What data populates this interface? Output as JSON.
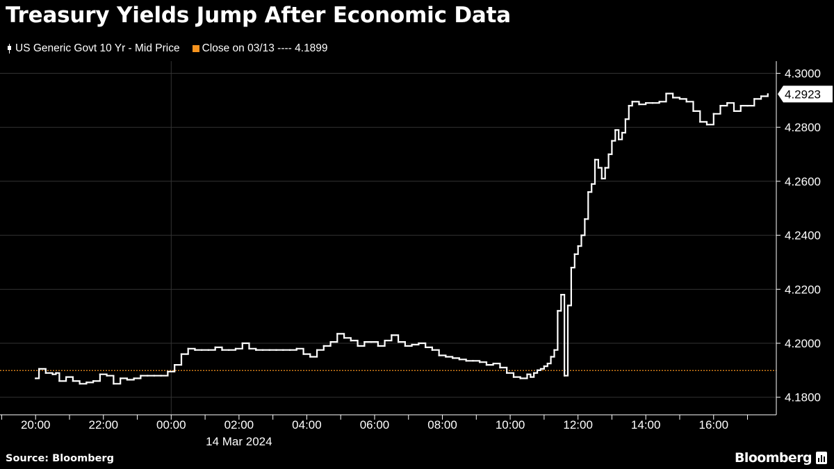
{
  "title": "Treasury Yields Jump After Economic Data",
  "legend": [
    {
      "label": "US Generic Govt 10 Yr - Mid Price",
      "color": "#ffffff",
      "kind": "candle"
    },
    {
      "label": "Close on 03/13 ---- 4.1899",
      "color": "#f7931e",
      "kind": "square"
    }
  ],
  "footer": {
    "source": "Source: Bloomberg",
    "logo_text": "Bloomberg"
  },
  "colors": {
    "background": "#000000",
    "series": "#ffffff",
    "reference_line": "#f7931e",
    "grid": "#333333"
  },
  "chart_data": {
    "type": "line",
    "x_unit": "hours from 20:00 on 13 Mar 2024",
    "xlim": [
      -1.05,
      21.85
    ],
    "ylim": [
      4.1735,
      4.3045
    ],
    "y_ticks": [
      4.18,
      4.2,
      4.22,
      4.24,
      4.26,
      4.28,
      4.3
    ],
    "y_tick_labels": [
      "4.1800",
      "4.2000",
      "4.2200",
      "4.2400",
      "4.2600",
      "4.2800",
      "4.3000"
    ],
    "x_ticks": [
      0,
      2,
      4,
      6,
      8,
      10,
      12,
      14,
      16,
      18,
      20
    ],
    "x_tick_labels": [
      "20:00",
      "22:00",
      "00:00",
      "02:00",
      "04:00",
      "06:00",
      "08:00",
      "10:00",
      "12:00",
      "14:00",
      "16:00"
    ],
    "x_sublabel": "14 Mar 2024",
    "x_sublabel_at": 6,
    "vertical_grid_at": [
      4
    ],
    "reference_line": {
      "value": 4.1899,
      "label": "Close on 03/13 ---- 4.1899"
    },
    "last_value_label": "4.2923",
    "last_value": 4.2923,
    "series": [
      {
        "name": "US Generic Govt 10 Yr - Mid Price",
        "x": [
          0,
          0.1,
          0.3,
          0.5,
          0.6,
          0.7,
          0.9,
          1.1,
          1.3,
          1.5,
          1.7,
          1.9,
          2.1,
          2.3,
          2.5,
          2.7,
          2.9,
          3.1,
          3.3,
          3.5,
          3.7,
          3.9,
          4.1,
          4.3,
          4.5,
          4.7,
          4.9,
          5.1,
          5.3,
          5.5,
          5.7,
          5.9,
          6.1,
          6.3,
          6.5,
          6.7,
          6.9,
          7.1,
          7.3,
          7.5,
          7.7,
          7.9,
          8.1,
          8.3,
          8.5,
          8.7,
          8.9,
          9.1,
          9.3,
          9.5,
          9.7,
          9.9,
          10.1,
          10.3,
          10.5,
          10.7,
          10.9,
          11.1,
          11.3,
          11.5,
          11.7,
          11.9,
          12.1,
          12.3,
          12.5,
          12.7,
          12.9,
          13.1,
          13.3,
          13.5,
          13.7,
          13.9,
          14.1,
          14.3,
          14.5,
          14.6,
          14.7,
          14.8,
          14.9,
          15.0,
          15.1,
          15.2,
          15.3,
          15.4,
          15.5,
          15.6,
          15.7,
          15.8,
          15.9,
          16.0,
          16.1,
          16.2,
          16.3,
          16.4,
          16.5,
          16.6,
          16.7,
          16.8,
          16.9,
          17.0,
          17.1,
          17.2,
          17.3,
          17.4,
          17.5,
          17.6,
          17.8,
          18.0,
          18.2,
          18.4,
          18.6,
          18.8,
          19.0,
          19.2,
          19.4,
          19.6,
          19.8,
          20.0,
          20.2,
          20.4,
          20.6,
          20.8,
          21.0,
          21.2,
          21.4,
          21.6
        ],
        "values": [
          4.187,
          4.1905,
          4.189,
          4.1885,
          4.189,
          4.186,
          4.1875,
          4.186,
          4.185,
          4.1855,
          4.186,
          4.1885,
          4.188,
          4.185,
          4.187,
          4.1865,
          4.187,
          4.188,
          4.188,
          4.188,
          4.188,
          4.1895,
          4.192,
          4.196,
          4.198,
          4.1975,
          4.1975,
          4.1975,
          4.1985,
          4.1975,
          4.1975,
          4.198,
          4.2,
          4.198,
          4.1975,
          4.1975,
          4.1975,
          4.1975,
          4.1975,
          4.1975,
          4.198,
          4.196,
          4.195,
          4.1975,
          4.199,
          4.2005,
          4.2035,
          4.202,
          4.201,
          4.199,
          4.2005,
          4.2005,
          4.199,
          4.201,
          4.203,
          4.2005,
          4.199,
          4.1995,
          4.2,
          4.1985,
          4.1975,
          4.1955,
          4.195,
          4.1945,
          4.194,
          4.1935,
          4.1935,
          4.193,
          4.192,
          4.1925,
          4.191,
          4.189,
          4.1875,
          4.187,
          4.1885,
          4.1875,
          4.189,
          4.19,
          4.1905,
          4.1915,
          4.1925,
          4.195,
          4.1975,
          4.212,
          4.218,
          4.188,
          4.214,
          4.228,
          4.233,
          4.236,
          4.24,
          4.246,
          4.256,
          4.259,
          4.268,
          4.265,
          4.261,
          4.265,
          4.27,
          4.275,
          4.279,
          4.2755,
          4.278,
          4.283,
          4.288,
          4.2895,
          4.2885,
          4.289,
          4.289,
          4.2895,
          4.2925,
          4.291,
          4.2905,
          4.2895,
          4.286,
          4.282,
          4.281,
          4.285,
          4.288,
          4.289,
          4.286,
          4.288,
          4.288,
          4.2905,
          4.2915,
          4.2923
        ]
      }
    ]
  }
}
